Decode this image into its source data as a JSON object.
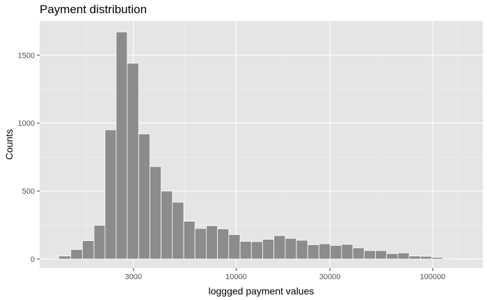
{
  "chart_data": {
    "type": "bar",
    "title": "Payment distribution",
    "xlabel": "loggged payment values",
    "ylabel": "Counts",
    "x_scale": "log10",
    "xlim": [
      1000,
      180000
    ],
    "ylim": [
      0,
      1750
    ],
    "x_ticks": [
      3000,
      10000,
      30000,
      100000
    ],
    "x_tick_labels": [
      "3000",
      "10000",
      "30000",
      "100000"
    ],
    "y_ticks": [
      0,
      500,
      1000,
      1500
    ],
    "y_tick_labels": [
      "0",
      "500",
      "1000",
      "1500"
    ],
    "bin_lower": [
      1650,
      1890,
      2150,
      2450,
      2790,
      3190,
      3640,
      4150,
      4740,
      5410,
      6170,
      7040,
      8040,
      9170,
      10470,
      11950,
      13630,
      15560,
      17760,
      20260,
      23120,
      26390,
      30120,
      34370,
      39230,
      44770,
      51090,
      58310,
      66540,
      75940,
      86670,
      98910,
      112880,
      128830,
      147020
    ],
    "bin_upper": [
      1890,
      2150,
      2450,
      2790,
      3190,
      3640,
      4150,
      4740,
      5410,
      6170,
      7040,
      8040,
      9170,
      10470,
      11950,
      13630,
      15560,
      17760,
      20260,
      23120,
      26390,
      30120,
      34370,
      39230,
      44770,
      51090,
      58310,
      66540,
      75940,
      86670,
      98910,
      112880,
      128830,
      147020,
      167790
    ],
    "first_bins": [
      {
        "lower": 1250,
        "upper": 1440,
        "count": 22
      },
      {
        "lower": 1440,
        "upper": 1650,
        "count": 70
      }
    ],
    "counts": [
      135,
      248,
      950,
      1670,
      1440,
      920,
      680,
      500,
      418,
      278,
      225,
      245,
      222,
      180,
      130,
      128,
      145,
      172,
      152,
      138,
      105,
      112,
      100,
      108,
      82,
      62,
      62,
      40,
      45,
      22,
      20,
      12,
      5,
      3,
      2
    ],
    "bar_color": "#8c8c8c",
    "panel_bg": "#e5e5e5",
    "grid": true,
    "legend": "none"
  }
}
